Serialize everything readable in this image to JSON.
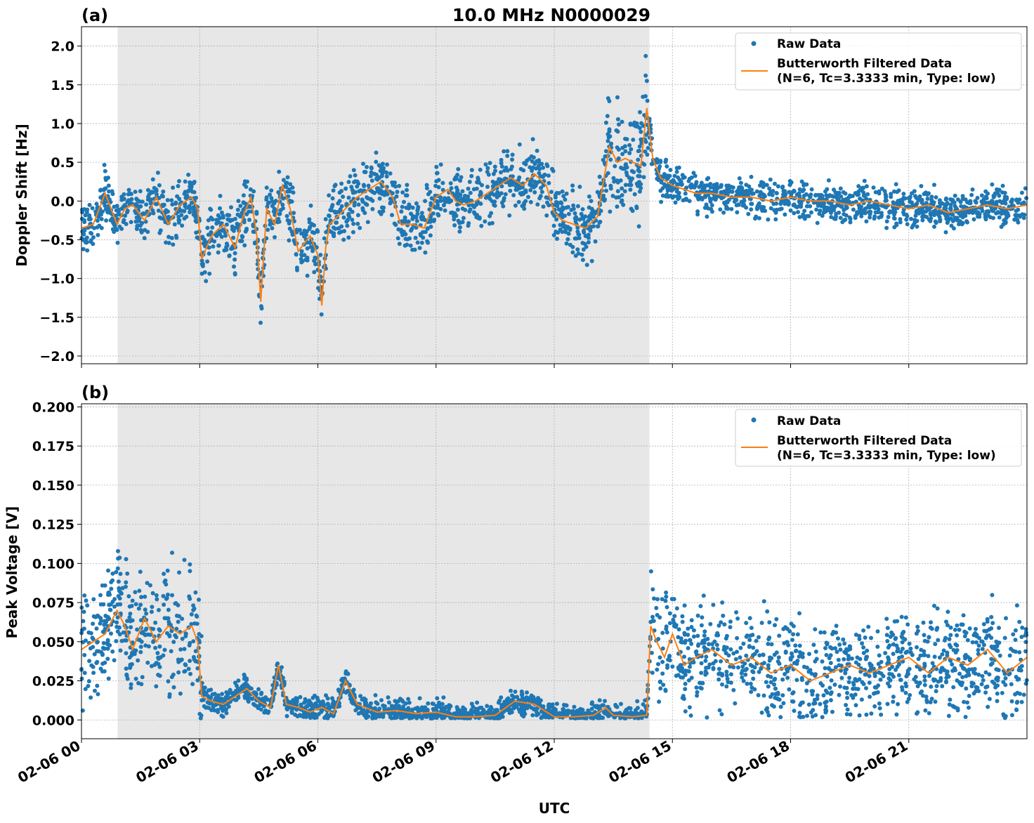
{
  "figure": {
    "title": "10.0 MHz N0000029",
    "xlabel": "UTC",
    "x_tick_labels": [
      "02-06 00",
      "02-06 03",
      "02-06 06",
      "02-06 09",
      "02-06 12",
      "02-06 15",
      "02-06 18",
      "02-06 21"
    ],
    "colors": {
      "raw": "#1f77b4",
      "filtered": "#ff7f0e",
      "shade": "#e7e7e7",
      "grid": "#b0b0b0"
    }
  },
  "chart_data": [
    {
      "type": "scatter",
      "panel_label": "(a)",
      "ylabel": "Doppler Shift [Hz]",
      "xlim": [
        "02-06 00:00",
        "02-07 00:00"
      ],
      "ylim": [
        -2.1,
        2.25
      ],
      "y_ticks": [
        -2.0,
        -1.5,
        -1.0,
        -0.5,
        0.0,
        0.5,
        1.0,
        1.5,
        2.0
      ],
      "y_tick_labels": [
        "−2.0",
        "−1.5",
        "−1.0",
        "−0.5",
        "0.0",
        "0.5",
        "1.0",
        "1.5",
        "2.0"
      ],
      "shaded_interval": [
        "02-06 00:55",
        "02-06 14:25"
      ],
      "grid": true,
      "legend_position": "upper right",
      "legend": [
        "Raw Data",
        "Butterworth Filtered Data",
        "(N=6, Tc=3.3333 min, Type: low)"
      ],
      "filtered_series": {
        "x_hours": [
          0,
          0.3,
          0.6,
          0.9,
          1.1,
          1.3,
          1.6,
          1.9,
          2.2,
          2.5,
          2.8,
          2.95,
          3.05,
          3.3,
          3.6,
          3.9,
          4.1,
          4.3,
          4.45,
          4.55,
          4.7,
          4.9,
          5.1,
          5.3,
          5.5,
          5.8,
          6.0,
          6.1,
          6.2,
          6.3,
          6.5,
          6.8,
          7.0,
          7.3,
          7.6,
          7.9,
          8.1,
          8.4,
          8.7,
          9.0,
          9.3,
          9.5,
          9.7,
          10.0,
          10.3,
          10.6,
          10.9,
          11.2,
          11.5,
          11.8,
          12.0,
          12.2,
          12.5,
          12.8,
          13.1,
          13.4,
          13.6,
          13.8,
          14.0,
          14.2,
          14.35,
          14.5,
          14.7,
          15.0,
          15.3,
          15.6,
          16.0,
          16.5,
          17.0,
          17.5,
          18.0,
          18.5,
          19.0,
          19.5,
          20.0,
          20.5,
          21.0,
          21.5,
          22.0,
          22.5,
          23.0,
          23.5,
          24.0
        ],
        "y": [
          -0.35,
          -0.3,
          0.1,
          -0.3,
          -0.1,
          -0.05,
          -0.25,
          0.05,
          -0.3,
          -0.05,
          0.05,
          -0.1,
          -0.75,
          -0.45,
          -0.3,
          -0.6,
          -0.2,
          0.05,
          -0.45,
          -1.3,
          -0.1,
          -0.3,
          0.2,
          -0.1,
          -0.65,
          -0.45,
          -0.7,
          -1.35,
          -0.6,
          -0.3,
          -0.2,
          -0.05,
          0.05,
          0.15,
          0.25,
          0.05,
          -0.3,
          -0.3,
          -0.35,
          0.05,
          0.15,
          0.0,
          -0.05,
          0.0,
          0.1,
          0.2,
          0.3,
          0.2,
          0.35,
          0.2,
          -0.15,
          -0.25,
          -0.3,
          -0.35,
          -0.2,
          0.7,
          0.5,
          0.55,
          0.5,
          0.45,
          1.2,
          0.55,
          0.3,
          0.2,
          0.15,
          0.1,
          0.1,
          0.05,
          0.05,
          0.0,
          0.05,
          0.0,
          0.0,
          -0.05,
          0.0,
          -0.05,
          -0.1,
          -0.05,
          -0.15,
          -0.1,
          -0.05,
          -0.1,
          -0.05
        ]
      }
    },
    {
      "type": "scatter",
      "panel_label": "(b)",
      "ylabel": "Peak Voltage [V]",
      "xlim": [
        "02-06 00:00",
        "02-07 00:00"
      ],
      "ylim": [
        -0.012,
        0.202
      ],
      "y_ticks": [
        0.0,
        0.025,
        0.05,
        0.075,
        0.1,
        0.125,
        0.15,
        0.175,
        0.2
      ],
      "y_tick_labels": [
        "0.000",
        "0.025",
        "0.050",
        "0.075",
        "0.100",
        "0.125",
        "0.150",
        "0.175",
        "0.200"
      ],
      "shaded_interval": [
        "02-06 00:55",
        "02-06 14:25"
      ],
      "grid": true,
      "legend_position": "upper right",
      "legend": [
        "Raw Data",
        "Butterworth Filtered Data",
        "(N=6, Tc=3.3333 min, Type: low)"
      ],
      "filtered_series": {
        "x_hours": [
          0,
          0.3,
          0.6,
          0.9,
          1.1,
          1.3,
          1.6,
          1.9,
          2.2,
          2.5,
          2.8,
          2.95,
          3.05,
          3.3,
          3.6,
          3.9,
          4.2,
          4.5,
          4.8,
          5.0,
          5.2,
          5.5,
          5.8,
          6.1,
          6.4,
          6.7,
          7.0,
          7.5,
          8.0,
          8.5,
          9.0,
          9.5,
          10.0,
          10.5,
          11.0,
          11.5,
          12.0,
          12.5,
          13.0,
          13.3,
          13.5,
          14.0,
          14.35,
          14.45,
          14.6,
          14.8,
          15.0,
          15.3,
          15.6,
          16.0,
          16.5,
          17.0,
          17.5,
          18.0,
          18.5,
          19.0,
          19.5,
          20.0,
          20.5,
          21.0,
          21.5,
          22.0,
          22.5,
          23.0,
          23.5,
          24.0
        ],
        "y": [
          0.045,
          0.05,
          0.055,
          0.07,
          0.06,
          0.045,
          0.065,
          0.05,
          0.06,
          0.055,
          0.06,
          0.05,
          0.015,
          0.012,
          0.01,
          0.015,
          0.02,
          0.012,
          0.008,
          0.035,
          0.01,
          0.008,
          0.005,
          0.008,
          0.004,
          0.025,
          0.01,
          0.005,
          0.006,
          0.004,
          0.005,
          0.002,
          0.002,
          0.003,
          0.012,
          0.01,
          0.002,
          0.002,
          0.003,
          0.008,
          0.003,
          0.002,
          0.003,
          0.06,
          0.05,
          0.04,
          0.055,
          0.035,
          0.04,
          0.045,
          0.035,
          0.04,
          0.03,
          0.035,
          0.025,
          0.03,
          0.035,
          0.03,
          0.035,
          0.04,
          0.03,
          0.04,
          0.035,
          0.045,
          0.03,
          0.04
        ]
      }
    }
  ]
}
